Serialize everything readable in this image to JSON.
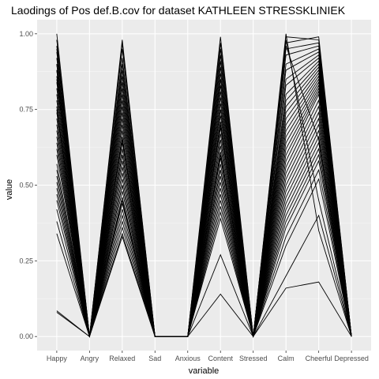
{
  "chart_data": {
    "type": "line",
    "title": "Laodings of Pos def.B.cov for dataset KATHLEEN STRESSKLINIEK",
    "xlabel": "variable",
    "ylabel": "value",
    "categories": [
      "Happy",
      "Angry",
      "Relaxed",
      "Sad",
      "Anxious",
      "Content",
      "Stressed",
      "Calm",
      "Cheerful",
      "Depressed"
    ],
    "ylim": [
      0,
      1
    ],
    "yticks": [
      0.0,
      0.25,
      0.5,
      0.75,
      1.0
    ],
    "ytick_labels": [
      "0.00",
      "0.25",
      "0.50",
      "0.75",
      "1.00"
    ],
    "grid": true,
    "line_color": "#000000",
    "panel_color": "#ebebeb",
    "series": [
      {
        "values": [
          1.0,
          0,
          0.98,
          0,
          0,
          0.99,
          0,
          0.99,
          0.98,
          0
        ]
      },
      {
        "values": [
          0.98,
          0,
          0.95,
          0,
          0,
          0.97,
          0,
          0.97,
          0.99,
          0
        ]
      },
      {
        "values": [
          0.96,
          0,
          0.92,
          0,
          0,
          0.95,
          0,
          0.95,
          0.97,
          0
        ]
      },
      {
        "values": [
          0.94,
          0,
          0.9,
          0,
          0,
          0.93,
          0,
          0.93,
          0.96,
          0
        ]
      },
      {
        "values": [
          0.92,
          0,
          0.88,
          0,
          0,
          0.91,
          0,
          0.9,
          0.95,
          0
        ]
      },
      {
        "values": [
          0.9,
          0,
          0.86,
          0,
          0,
          0.89,
          0,
          0.88,
          0.94,
          0
        ]
      },
      {
        "values": [
          0.88,
          0,
          0.84,
          0,
          0,
          0.87,
          0,
          0.85,
          0.93,
          0
        ]
      },
      {
        "values": [
          0.86,
          0,
          0.82,
          0,
          0,
          0.85,
          0,
          0.83,
          0.92,
          0
        ]
      },
      {
        "values": [
          0.84,
          0,
          0.8,
          0,
          0,
          0.83,
          0,
          0.8,
          0.91,
          0
        ]
      },
      {
        "values": [
          0.82,
          0,
          0.78,
          0,
          0,
          0.81,
          0,
          0.78,
          0.9,
          0
        ]
      },
      {
        "values": [
          0.8,
          0,
          0.76,
          0,
          0,
          0.79,
          0,
          0.76,
          0.89,
          0
        ]
      },
      {
        "values": [
          0.78,
          0,
          0.74,
          0,
          0,
          0.77,
          0,
          0.74,
          0.88,
          0
        ]
      },
      {
        "values": [
          0.76,
          0,
          0.72,
          0,
          0,
          0.75,
          0,
          0.72,
          0.87,
          0
        ]
      },
      {
        "values": [
          0.74,
          0,
          0.7,
          0,
          0,
          0.73,
          0,
          0.7,
          0.86,
          0
        ]
      },
      {
        "values": [
          0.72,
          0,
          0.68,
          0,
          0,
          0.71,
          0,
          0.68,
          0.85,
          0
        ]
      },
      {
        "values": [
          0.7,
          0,
          0.66,
          0,
          0,
          0.69,
          0,
          0.66,
          0.84,
          0
        ]
      },
      {
        "values": [
          0.68,
          0,
          0.64,
          0,
          0,
          0.67,
          0,
          0.64,
          0.83,
          0
        ]
      },
      {
        "values": [
          0.66,
          0,
          0.62,
          0,
          0,
          0.65,
          0,
          0.62,
          0.82,
          0
        ]
      },
      {
        "values": [
          0.64,
          0,
          0.6,
          0,
          0,
          0.63,
          0,
          0.6,
          0.81,
          0
        ]
      },
      {
        "values": [
          0.62,
          0,
          0.58,
          0,
          0,
          0.61,
          0,
          0.58,
          0.8,
          0
        ]
      },
      {
        "values": [
          0.6,
          0,
          0.56,
          0,
          0,
          0.59,
          0,
          0.56,
          0.78,
          0
        ]
      },
      {
        "values": [
          0.57,
          0,
          0.54,
          0,
          0,
          0.57,
          0,
          0.54,
          0.76,
          0
        ]
      },
      {
        "values": [
          0.55,
          0,
          0.52,
          0,
          0,
          0.55,
          0,
          0.52,
          0.74,
          0
        ]
      },
      {
        "values": [
          0.53,
          0,
          0.5,
          0,
          0,
          0.53,
          0,
          0.5,
          0.72,
          0
        ]
      },
      {
        "values": [
          0.51,
          0,
          0.48,
          0,
          0,
          0.51,
          0,
          0.48,
          0.7,
          0
        ]
      },
      {
        "values": [
          0.49,
          0,
          0.46,
          0,
          0,
          0.49,
          0,
          0.46,
          0.68,
          0
        ]
      },
      {
        "values": [
          0.47,
          0,
          0.44,
          0,
          0,
          0.47,
          0,
          0.44,
          0.66,
          0
        ]
      },
      {
        "values": [
          0.45,
          0,
          0.42,
          0,
          0,
          0.45,
          0,
          0.42,
          0.64,
          0
        ]
      },
      {
        "values": [
          0.42,
          0,
          0.4,
          0,
          0,
          0.43,
          0,
          0.4,
          0.62,
          0
        ]
      },
      {
        "values": [
          0.38,
          0,
          0.38,
          0,
          0,
          0.41,
          0,
          0.38,
          0.6,
          0
        ]
      },
      {
        "values": [
          0.34,
          0,
          0.36,
          0,
          0,
          0.39,
          0,
          0.36,
          0.58,
          0
        ]
      },
      {
        "values": [
          0.085,
          0,
          0.34,
          0,
          0,
          0.27,
          0,
          0.33,
          0.55,
          0
        ]
      },
      {
        "values": [
          0.08,
          0,
          0.33,
          0,
          0,
          0.14,
          0,
          0.3,
          0.52,
          0
        ]
      },
      {
        "values": [
          0.9,
          0,
          0.5,
          0,
          0,
          0.6,
          0,
          0.16,
          0.18,
          0
        ]
      },
      {
        "values": [
          0.75,
          0,
          0.45,
          0,
          0,
          0.55,
          0,
          0.2,
          0.4,
          0
        ]
      },
      {
        "values": [
          0.85,
          0,
          0.6,
          0,
          0,
          0.7,
          0,
          1.0,
          0.35,
          0
        ]
      },
      {
        "values": [
          0.95,
          0,
          0.97,
          0,
          0,
          0.85,
          0,
          0.98,
          0.45,
          0
        ]
      },
      {
        "values": [
          0.88,
          0,
          0.65,
          0,
          0,
          0.75,
          0,
          0.96,
          0.65,
          0
        ]
      }
    ]
  }
}
